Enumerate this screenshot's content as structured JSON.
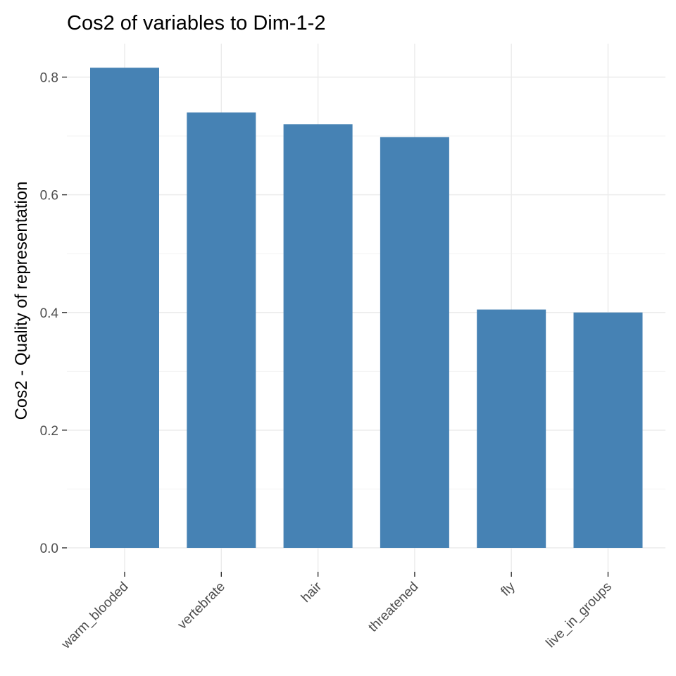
{
  "chart_data": {
    "type": "bar",
    "title": "Cos2 of variables to Dim-1-2",
    "xlabel": "",
    "ylabel": "Cos2 - Quality of representation",
    "categories": [
      "warm_blooded",
      "vertebrate",
      "hair",
      "threatened",
      "fly",
      "live_in_groups"
    ],
    "values": [
      0.816,
      0.74,
      0.72,
      0.698,
      0.405,
      0.4
    ],
    "ylim": [
      0,
      0.84
    ],
    "yticks": [
      0.0,
      0.2,
      0.4,
      0.6,
      0.8
    ],
    "ytick_labels": [
      "0.0",
      "0.2",
      "0.4",
      "0.6",
      "0.8"
    ],
    "grid": true,
    "bar_color": "#4682B4"
  }
}
